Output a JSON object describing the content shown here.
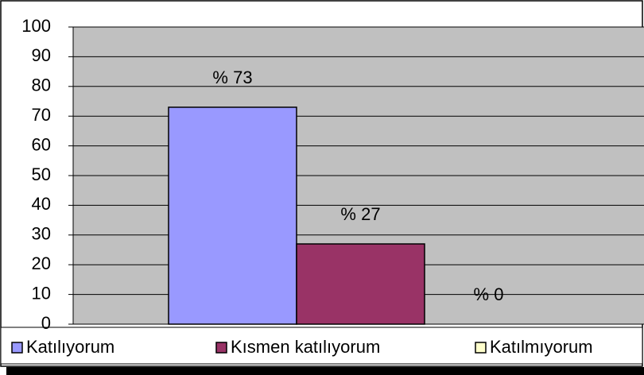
{
  "chart_data": {
    "type": "bar",
    "categories": [
      null
    ],
    "series": [
      {
        "name": "Katılıyorum",
        "color": "#9999ff",
        "values": [
          73
        ],
        "value_labels": [
          "% 73"
        ]
      },
      {
        "name": "Kısmen katılıyorum",
        "color": "#993366",
        "values": [
          27
        ],
        "value_labels": [
          "% 27"
        ]
      },
      {
        "name": "Katılmıyorum",
        "color": "#ffffcc",
        "values": [
          0
        ],
        "value_labels": [
          "% 0"
        ]
      }
    ],
    "ylim": [
      0,
      100
    ],
    "yticks": [
      0,
      10,
      20,
      30,
      40,
      50,
      60,
      70,
      80,
      90,
      100
    ],
    "grid": true,
    "legend": "bottom"
  }
}
